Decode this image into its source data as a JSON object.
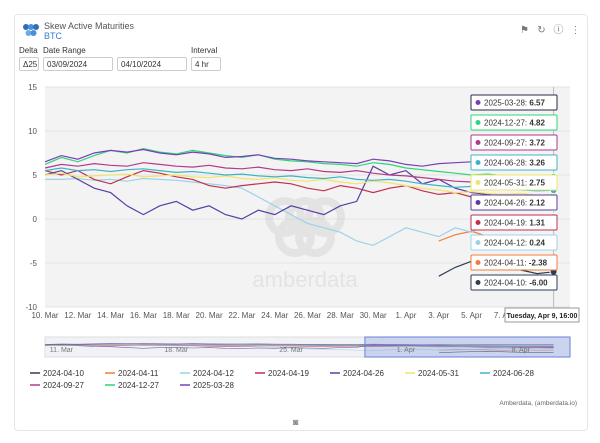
{
  "header": {
    "title": "Skew Active Maturities",
    "subtitle": "BTC",
    "icons": [
      "bookmark-icon",
      "refresh-icon",
      "info-icon",
      "more-icon"
    ]
  },
  "controls": {
    "delta_label": "Delta",
    "delta_value": "Δ25",
    "date_range_label": "Date Range",
    "date_from": "03/09/2024",
    "date_to": "04/10/2024",
    "interval_label": "Interval",
    "interval_value": "4 hr"
  },
  "watermark": "amberdata",
  "credit": "Amberdata, (amberdata.io)",
  "tooltip_header": "Tuesday, Apr 9, 16:00",
  "chart_data": {
    "type": "line",
    "ylim": [
      -10,
      15
    ],
    "yticks": [
      15,
      10,
      5,
      0,
      -5,
      -10
    ],
    "xlim": [
      0,
      32
    ],
    "xtick_positions": [
      0,
      2,
      4,
      6,
      8,
      10,
      12,
      14,
      16,
      18,
      20,
      22,
      24,
      26,
      28
    ],
    "xtick_labels": [
      "10. Mar",
      "12. Mar",
      "14. Mar",
      "16. Mar",
      "18. Mar",
      "20. Mar",
      "22. Mar",
      "24. Mar",
      "26. Mar",
      "28. Mar",
      "30. Mar",
      "1. Apr",
      "3. Apr",
      "5. Apr",
      "7. Apr"
    ],
    "navigator_labels": [
      "11. Mar",
      "18. Mar",
      "25. Mar",
      "1. Apr",
      "8. Apr"
    ],
    "navigator_label_positions": [
      1,
      8,
      15,
      22,
      29
    ],
    "navigator_selection": [
      19.5,
      32
    ],
    "series": [
      {
        "name": "2024-04-10",
        "color": "#2f3e57",
        "x": [
          24,
          25,
          26,
          27,
          28,
          29,
          30,
          31
        ],
        "y": [
          -6.5,
          -5.5,
          -4.8,
          -4.2,
          -5.0,
          -5.8,
          -6.2,
          -6.0
        ]
      },
      {
        "name": "2024-04-11",
        "color": "#f07b3a",
        "x": [
          24,
          25,
          26,
          27,
          28,
          29,
          30,
          31
        ],
        "y": [
          -2.5,
          -1.8,
          -1.4,
          -2.0,
          -2.6,
          -2.2,
          -2.5,
          -2.38
        ]
      },
      {
        "name": "2024-04-12",
        "color": "#9ad3e8",
        "x": [
          0,
          1,
          2,
          3,
          4,
          5,
          6,
          7,
          8,
          9,
          10,
          11,
          12,
          13,
          14,
          15,
          16,
          17,
          18,
          19,
          20,
          21,
          22,
          23,
          24,
          25,
          26,
          27,
          28,
          29,
          30,
          31
        ],
        "y": [
          4.5,
          4.5,
          4.6,
          4.4,
          4.5,
          4.3,
          4.6,
          4.5,
          4.4,
          4.2,
          4.0,
          3.8,
          3.5,
          2.5,
          1.5,
          0.5,
          -0.5,
          -1.0,
          -1.5,
          -2.5,
          -3.0,
          -2.0,
          -1.0,
          -1.5,
          -2.0,
          -1.0,
          -1.5,
          -0.5,
          0.0,
          0.3,
          0.2,
          0.24
        ]
      },
      {
        "name": "2024-04-19",
        "color": "#c0304f",
        "x": [
          0,
          1,
          2,
          3,
          4,
          5,
          6,
          7,
          8,
          9,
          10,
          11,
          12,
          13,
          14,
          15,
          16,
          17,
          18,
          19,
          20,
          21,
          22,
          23,
          24,
          25,
          26,
          27,
          28,
          29,
          30,
          31
        ],
        "y": [
          5.5,
          5.0,
          5.5,
          4.5,
          4.0,
          4.8,
          5.5,
          5.2,
          4.8,
          4.5,
          3.8,
          3.5,
          3.8,
          4.0,
          4.2,
          4.0,
          3.5,
          3.2,
          3.8,
          3.5,
          3.0,
          3.5,
          3.8,
          3.2,
          2.8,
          3.0,
          2.5,
          2.0,
          2.2,
          1.8,
          1.5,
          1.31
        ]
      },
      {
        "name": "2024-04-26",
        "color": "#5a3ea0",
        "x": [
          0,
          1,
          2,
          3,
          4,
          5,
          6,
          7,
          8,
          9,
          10,
          11,
          12,
          13,
          14,
          15,
          16,
          17,
          18,
          19,
          20,
          21,
          22,
          23,
          24,
          25,
          26,
          27,
          28,
          29,
          30,
          31
        ],
        "y": [
          5.0,
          5.5,
          4.5,
          3.5,
          3.0,
          1.5,
          0.5,
          1.5,
          2.0,
          1.0,
          1.5,
          0.5,
          0.0,
          1.0,
          0.5,
          1.5,
          1.0,
          0.5,
          1.5,
          2.0,
          6.0,
          5.0,
          5.5,
          4.0,
          4.5,
          3.5,
          3.0,
          2.8,
          2.5,
          2.3,
          2.2,
          2.12
        ]
      },
      {
        "name": "2024-05-31",
        "color": "#f2e36b",
        "x": [
          0,
          1,
          2,
          3,
          4,
          5,
          6,
          7,
          8,
          9,
          10,
          11,
          12,
          13,
          14,
          15,
          16,
          17,
          18,
          19,
          20,
          21,
          22,
          23,
          24,
          25,
          26,
          27,
          28,
          29,
          30,
          31
        ],
        "y": [
          5.0,
          5.2,
          4.8,
          4.9,
          5.0,
          5.1,
          4.8,
          4.9,
          5.0,
          4.8,
          4.7,
          4.9,
          4.6,
          4.5,
          4.7,
          4.4,
          4.3,
          4.5,
          4.2,
          4.0,
          4.3,
          4.1,
          3.8,
          3.5,
          3.3,
          3.0,
          3.1,
          2.9,
          2.8,
          2.9,
          2.7,
          2.75
        ]
      },
      {
        "name": "2024-06-28",
        "color": "#3db3c9",
        "x": [
          0,
          1,
          2,
          3,
          4,
          5,
          6,
          7,
          8,
          9,
          10,
          11,
          12,
          13,
          14,
          15,
          16,
          17,
          18,
          19,
          20,
          21,
          22,
          23,
          24,
          25,
          26,
          27,
          28,
          29,
          30,
          31
        ],
        "y": [
          5.5,
          5.8,
          5.5,
          5.6,
          5.4,
          5.6,
          5.7,
          5.5,
          5.3,
          5.4,
          5.2,
          5.0,
          5.1,
          4.9,
          4.8,
          4.9,
          4.7,
          4.6,
          4.8,
          4.5,
          4.4,
          4.5,
          4.3,
          4.0,
          3.8,
          3.6,
          3.7,
          3.5,
          3.4,
          3.3,
          3.2,
          3.26
        ]
      },
      {
        "name": "2024-09-27",
        "color": "#b23a8a",
        "x": [
          0,
          1,
          2,
          3,
          4,
          5,
          6,
          7,
          8,
          9,
          10,
          11,
          12,
          13,
          14,
          15,
          16,
          17,
          18,
          19,
          20,
          21,
          22,
          23,
          24,
          25,
          26,
          27,
          28,
          29,
          30,
          31
        ],
        "y": [
          5.8,
          6.2,
          6.0,
          6.3,
          6.1,
          6.0,
          6.4,
          6.2,
          6.0,
          5.9,
          6.1,
          5.8,
          5.7,
          5.9,
          5.6,
          5.5,
          5.7,
          5.4,
          5.3,
          5.5,
          5.2,
          5.0,
          4.9,
          4.7,
          4.5,
          4.3,
          4.2,
          4.0,
          3.9,
          3.8,
          3.7,
          3.72
        ]
      },
      {
        "name": "2024-12-27",
        "color": "#2fd47a",
        "x": [
          0,
          1,
          2,
          3,
          4,
          5,
          6,
          7,
          8,
          9,
          10,
          11,
          12,
          13,
          14,
          15,
          16,
          17,
          18,
          19,
          20,
          21,
          22,
          23,
          24,
          25,
          26,
          27,
          28,
          29,
          30,
          31
        ],
        "y": [
          6.2,
          7.0,
          6.5,
          7.2,
          7.8,
          7.5,
          8.0,
          7.6,
          7.4,
          7.8,
          7.5,
          7.2,
          7.0,
          7.3,
          6.8,
          6.6,
          6.5,
          6.3,
          6.2,
          6.0,
          6.4,
          6.2,
          5.8,
          5.6,
          5.4,
          5.2,
          5.0,
          5.1,
          4.9,
          4.8,
          4.9,
          4.82
        ]
      },
      {
        "name": "2025-03-28",
        "color": "#7a3fb8",
        "x": [
          0,
          1,
          2,
          3,
          4,
          5,
          6,
          7,
          8,
          9,
          10,
          11,
          12,
          13,
          14,
          15,
          16,
          17,
          18,
          19,
          20,
          21,
          22,
          23,
          24,
          25,
          26,
          27,
          28,
          29,
          30,
          31
        ],
        "y": [
          6.5,
          7.2,
          6.8,
          7.5,
          7.8,
          7.6,
          7.9,
          7.5,
          7.3,
          7.6,
          7.4,
          7.0,
          7.1,
          7.3,
          6.9,
          6.8,
          6.6,
          6.5,
          6.4,
          6.3,
          6.8,
          6.6,
          6.2,
          6.0,
          6.3,
          6.4,
          6.5,
          6.6,
          6.6,
          6.5,
          6.6,
          6.57
        ]
      }
    ],
    "tooltip_rows": [
      {
        "label": "2025-03-28: ",
        "value": "6.57",
        "color": "#7a3fb8",
        "border": "#2a2a4a"
      },
      {
        "label": "2024-12-27: ",
        "value": "4.82",
        "color": "#2fd47a",
        "border": "#2fd47a"
      },
      {
        "label": "2024-09-27: ",
        "value": "3.72",
        "color": "#b23a8a",
        "border": "#b23a8a"
      },
      {
        "label": "2024-06-28: ",
        "value": "3.26",
        "color": "#3db3c9",
        "border": "#3db3c9"
      },
      {
        "label": "2024-05-31: ",
        "value": "2.75",
        "color": "#f2e36b",
        "border": "#f2e36b"
      },
      {
        "label": "2024-04-26: ",
        "value": "2.12",
        "color": "#5a3ea0",
        "border": "#5a3ea0"
      },
      {
        "label": "2024-04-19: ",
        "value": "1.31",
        "color": "#c0304f",
        "border": "#c0304f"
      },
      {
        "label": "2024-04-12: ",
        "value": "0.24",
        "color": "#9ad3e8",
        "border": "#9ad3e8"
      },
      {
        "label": "2024-04-11: ",
        "value": "-2.38",
        "color": "#f07b3a",
        "border": "#f07b3a"
      },
      {
        "label": "2024-04-10: ",
        "value": "-6.00",
        "color": "#2f3e57",
        "border": "#2f3e57"
      }
    ]
  }
}
